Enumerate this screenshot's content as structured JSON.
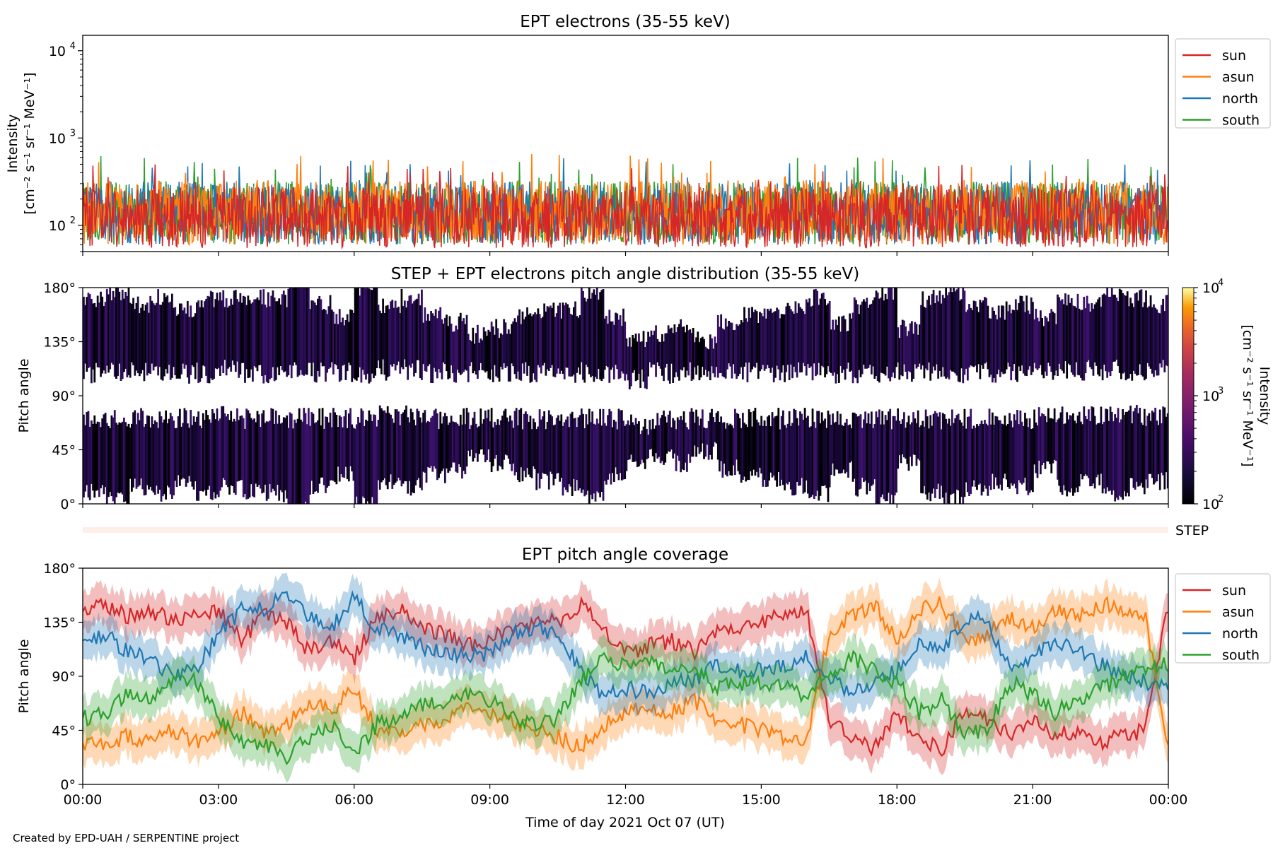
{
  "footer": {
    "credit": "Created by EPD-UAH / SERPENTINE project"
  },
  "colors": {
    "sun": "#d62728",
    "asun": "#ff7f0e",
    "north": "#1f77b4",
    "south": "#2ca02c",
    "step_band": "#fdeee8"
  },
  "chart_data": [
    {
      "type": "line",
      "title": "EPT electrons (35-55 keV)",
      "ylabel_line1": "Intensity",
      "ylabel_line2": "[cm⁻² s⁻¹ sr⁻¹ MeV⁻¹]",
      "xlim_hours": [
        0,
        24
      ],
      "yscale": "log",
      "ylim": [
        50,
        15000
      ],
      "yticks": [
        {
          "value": 100,
          "base": "10",
          "exp": "2"
        },
        {
          "value": 1000,
          "base": "10",
          "exp": "3"
        },
        {
          "value": 10000,
          "base": "10",
          "exp": "4"
        }
      ],
      "legend_position": "outside-right-top",
      "series": [
        {
          "name": "sun",
          "color_key": "sun",
          "typical": [
            55,
            280
          ],
          "peak_max": 500
        },
        {
          "name": "asun",
          "color_key": "asun",
          "typical": [
            60,
            330
          ],
          "peak_max": 680
        },
        {
          "name": "north",
          "color_key": "north",
          "typical": [
            60,
            320
          ],
          "peak_max": 600
        },
        {
          "name": "south",
          "color_key": "south",
          "typical": [
            60,
            320
          ],
          "peak_max": 620
        }
      ]
    },
    {
      "type": "heatmap",
      "title": "STEP + EPT electrons pitch angle distribution (35-55 keV)",
      "ylabel": "Pitch angle",
      "ylim": [
        0,
        180
      ],
      "yticks": [
        "0°",
        "45°",
        "90°",
        "135°",
        "180°"
      ],
      "colorbar": {
        "label_line1": "Intensity",
        "label_line2": "[cm⁻² s⁻¹ sr⁻¹ MeV⁻¹]",
        "scale": "log",
        "range": [
          100,
          10000
        ],
        "colormap": "inferno",
        "ticks": [
          {
            "base": "10",
            "exp": "2"
          },
          {
            "base": "10",
            "exp": "3"
          },
          {
            "base": "10",
            "exp": "4"
          }
        ]
      },
      "observed_intensity_range": [
        100,
        300
      ]
    },
    {
      "type": "area",
      "label": "STEP",
      "color_key": "step_band"
    },
    {
      "type": "line",
      "title": "EPT pitch angle coverage",
      "ylabel": "Pitch angle",
      "xlabel": "Time of day 2021 Oct 07 (UT)",
      "ylim": [
        0,
        180
      ],
      "yticks": [
        "0°",
        "45°",
        "90°",
        "135°",
        "180°"
      ],
      "xticks": [
        "00:00",
        "03:00",
        "06:00",
        "09:00",
        "12:00",
        "15:00",
        "18:00",
        "21:00",
        "00:00"
      ],
      "legend_position": "outside-right-top",
      "x_hours": [
        0,
        0.5,
        1,
        1.5,
        2,
        2.5,
        3,
        3.5,
        4,
        4.5,
        5,
        5.5,
        6,
        6.5,
        7,
        7.5,
        8,
        8.5,
        9,
        9.5,
        10,
        10.5,
        11,
        11.5,
        12,
        12.5,
        13,
        13.5,
        14,
        14.5,
        15,
        15.5,
        16,
        16.5,
        17,
        17.5,
        18,
        18.5,
        19,
        19.5,
        20,
        20.5,
        21,
        21.5,
        22,
        22.5,
        23,
        23.5,
        24
      ],
      "series": [
        {
          "name": "sun",
          "color_key": "sun",
          "values": [
            145,
            150,
            140,
            145,
            135,
            145,
            145,
            120,
            140,
            135,
            110,
            120,
            105,
            140,
            145,
            130,
            125,
            115,
            120,
            130,
            135,
            135,
            150,
            130,
            110,
            115,
            120,
            110,
            125,
            130,
            135,
            140,
            145,
            55,
            40,
            30,
            60,
            35,
            30,
            60,
            55,
            40,
            55,
            40,
            45,
            35,
            40,
            45,
            150
          ]
        },
        {
          "name": "asun",
          "color_key": "asun",
          "values": [
            35,
            30,
            40,
            35,
            45,
            35,
            40,
            60,
            45,
            50,
            70,
            60,
            80,
            45,
            40,
            50,
            55,
            65,
            60,
            50,
            45,
            40,
            30,
            50,
            60,
            65,
            60,
            70,
            55,
            50,
            45,
            40,
            35,
            125,
            140,
            150,
            120,
            145,
            150,
            120,
            125,
            140,
            130,
            145,
            140,
            150,
            145,
            140,
            30
          ]
        },
        {
          "name": "north",
          "color_key": "north",
          "values": [
            120,
            125,
            110,
            105,
            90,
            95,
            125,
            145,
            145,
            160,
            140,
            130,
            155,
            130,
            125,
            115,
            110,
            105,
            110,
            125,
            130,
            125,
            95,
            75,
            80,
            75,
            85,
            85,
            100,
            95,
            95,
            100,
            105,
            90,
            75,
            85,
            95,
            120,
            110,
            140,
            135,
            95,
            105,
            120,
            110,
            100,
            90,
            85,
            80
          ]
        },
        {
          "name": "south",
          "color_key": "south",
          "values": [
            55,
            60,
            75,
            70,
            90,
            85,
            55,
            35,
            35,
            20,
            40,
            50,
            25,
            50,
            55,
            65,
            70,
            75,
            70,
            55,
            50,
            55,
            85,
            105,
            100,
            105,
            95,
            95,
            80,
            85,
            85,
            80,
            75,
            90,
            105,
            95,
            85,
            60,
            70,
            40,
            45,
            85,
            75,
            60,
            70,
            80,
            90,
            95,
            100
          ]
        }
      ]
    }
  ]
}
